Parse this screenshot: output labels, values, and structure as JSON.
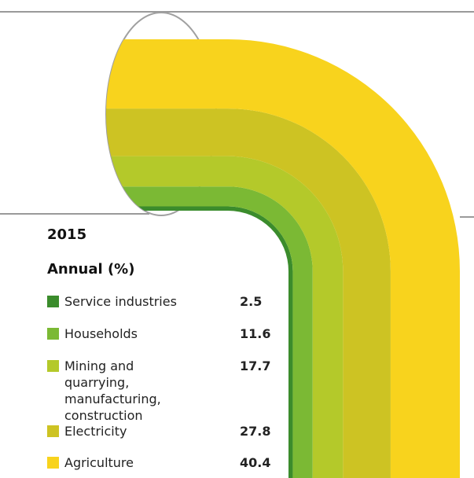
{
  "chart_data": {
    "type": "pipe",
    "title": "2015",
    "subtitle": "Annual (%)",
    "categories": [
      "Service industries",
      "Households",
      "Mining and quarrying, manufacturing, construction",
      "Electricity",
      "Agriculture"
    ],
    "values": [
      2.5,
      11.6,
      17.7,
      27.8,
      40.4
    ],
    "colors": [
      "#3b8c2c",
      "#7bb934",
      "#b4c92a",
      "#cdc323",
      "#f8d31d"
    ]
  }
}
